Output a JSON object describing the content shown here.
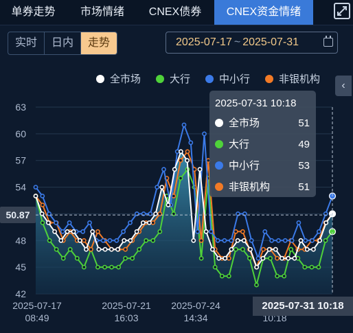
{
  "tabs": [
    "单券走势",
    "市场情绪",
    "CNEX债券",
    "CNEX资金情绪"
  ],
  "active_tab_index": 3,
  "expand_icon": "expand-icon",
  "mode_buttons": [
    "实时",
    "日内",
    "走势"
  ],
  "active_mode_index": 2,
  "date_range": {
    "start": "2025-07-17",
    "separator": "~",
    "end": "2025-07-31",
    "icon": "calendar-icon"
  },
  "legend": [
    {
      "name": "全市场",
      "color": "#ffffff"
    },
    {
      "name": "大行",
      "color": "#4fd23a"
    },
    {
      "name": "中小行",
      "color": "#3b7ae8"
    },
    {
      "name": "非银机构",
      "color": "#f27a26"
    }
  ],
  "side_toggle_icon": "chevron-left-icon",
  "current_value_label": "50.87",
  "crosshair_time_label": "2025-07-31 10:18",
  "tooltip": {
    "title": "2025-07-31 10:18",
    "rows": [
      {
        "name": "全市场",
        "value": "51",
        "color": "#ffffff"
      },
      {
        "name": "大行",
        "value": "49",
        "color": "#4fd23a"
      },
      {
        "name": "中小行",
        "value": "53",
        "color": "#3b7ae8"
      },
      {
        "name": "非银机构",
        "value": "51",
        "color": "#f27a26"
      }
    ]
  },
  "chart_data": {
    "type": "line",
    "ylim": [
      42,
      63
    ],
    "yticks": [
      42,
      45,
      48,
      51,
      54,
      57,
      60,
      63
    ],
    "x_tick_labels": [
      {
        "date": "2025-07-17",
        "time": "08:49"
      },
      {
        "date": "2025-07-21",
        "time": "16:03"
      },
      {
        "date": "2025-07-24",
        "time": "14:34"
      },
      {
        "date": "",
        "time": "10:18"
      }
    ],
    "series": [
      {
        "name": "全市场",
        "color": "#ffffff",
        "values": [
          53,
          51,
          50,
          49,
          48,
          49,
          49,
          48,
          47,
          49,
          47,
          47,
          47,
          47,
          48,
          48,
          49,
          50,
          50,
          51,
          54,
          52,
          56,
          58,
          57,
          48,
          56,
          49,
          47,
          46,
          46,
          47,
          48,
          48,
          47,
          45,
          46,
          47,
          47,
          46,
          46,
          46,
          48,
          47,
          47,
          48,
          50,
          51
        ]
      },
      {
        "name": "大行",
        "color": "#4fd23a",
        "values": [
          53,
          50,
          48,
          47,
          46,
          47,
          46,
          45,
          47,
          45,
          45,
          45,
          45,
          46,
          46,
          47,
          48,
          48,
          49,
          53,
          51,
          55,
          56,
          54,
          46,
          55,
          45,
          44,
          44,
          47,
          47,
          46,
          43,
          46,
          46,
          44,
          44,
          47,
          46,
          45,
          45,
          45,
          48,
          49
        ]
      },
      {
        "name": "中小行",
        "color": "#3b7ae8",
        "values": [
          54,
          53,
          51,
          50,
          49,
          50,
          49,
          49,
          50,
          48,
          48,
          48,
          48,
          49,
          50,
          51,
          51,
          51,
          54,
          56,
          52,
          58,
          61,
          59,
          49,
          60,
          49,
          48,
          48,
          48,
          51,
          51,
          48,
          46,
          49,
          48,
          48,
          48,
          48,
          50,
          48,
          48,
          49,
          51,
          53
        ]
      },
      {
        "name": "非银机构",
        "color": "#f27a26",
        "values": [
          53,
          52,
          50,
          50,
          48,
          49,
          48,
          48,
          47,
          49,
          48,
          47,
          47,
          47,
          48,
          49,
          50,
          50,
          51,
          55,
          53,
          57,
          58,
          56,
          48,
          57,
          47,
          46,
          46,
          49,
          49,
          47,
          45,
          47,
          47,
          46,
          46,
          48,
          47,
          47,
          48,
          48,
          50,
          51
        ]
      }
    ]
  }
}
